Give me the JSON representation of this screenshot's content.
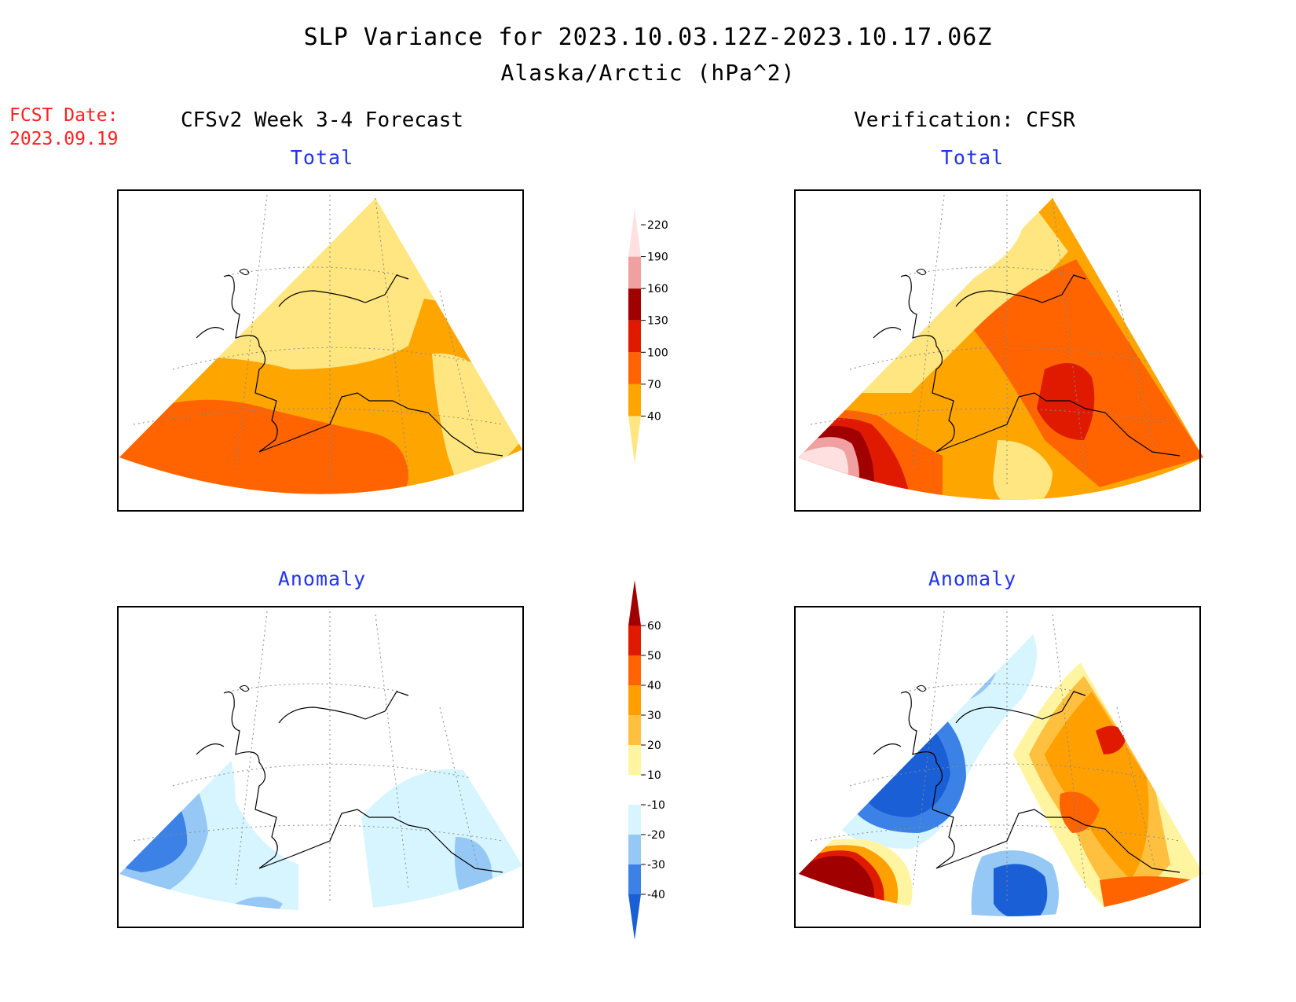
{
  "header": {
    "title": "SLP Variance for 2023.10.03.12Z-2023.10.17.06Z",
    "subtitle": "Alaska/Arctic (hPa^2)"
  },
  "forecast_date": {
    "label": "FCST Date:",
    "value": "2023.09.19"
  },
  "columns": {
    "left": "CFSv2 Week 3-4 Forecast",
    "right": "Verification: CFSR"
  },
  "panels": {
    "top_left": "Total",
    "top_right": "Total",
    "bottom_left": "Anomaly",
    "bottom_right": "Anomaly"
  },
  "colorbars": {
    "total": {
      "levels": [
        "40",
        "70",
        "100",
        "130",
        "160",
        "190",
        "220"
      ],
      "colors": [
        "#ffe680",
        "#ffa500",
        "#ff6400",
        "#e01a00",
        "#a00000",
        "#f0a0a0",
        "#ffe0e0"
      ]
    },
    "anomaly": {
      "levels": [
        "-40",
        "-30",
        "-20",
        "-10",
        "10",
        "20",
        "30",
        "40",
        "50",
        "60"
      ],
      "colors": [
        "#1a5fd6",
        "#3c82e6",
        "#96c8f5",
        "#d6f5ff",
        "#ffffff",
        "#fff5a0",
        "#ffc040",
        "#ffa000",
        "#ff6400",
        "#e01a00",
        "#a00000"
      ]
    }
  }
}
